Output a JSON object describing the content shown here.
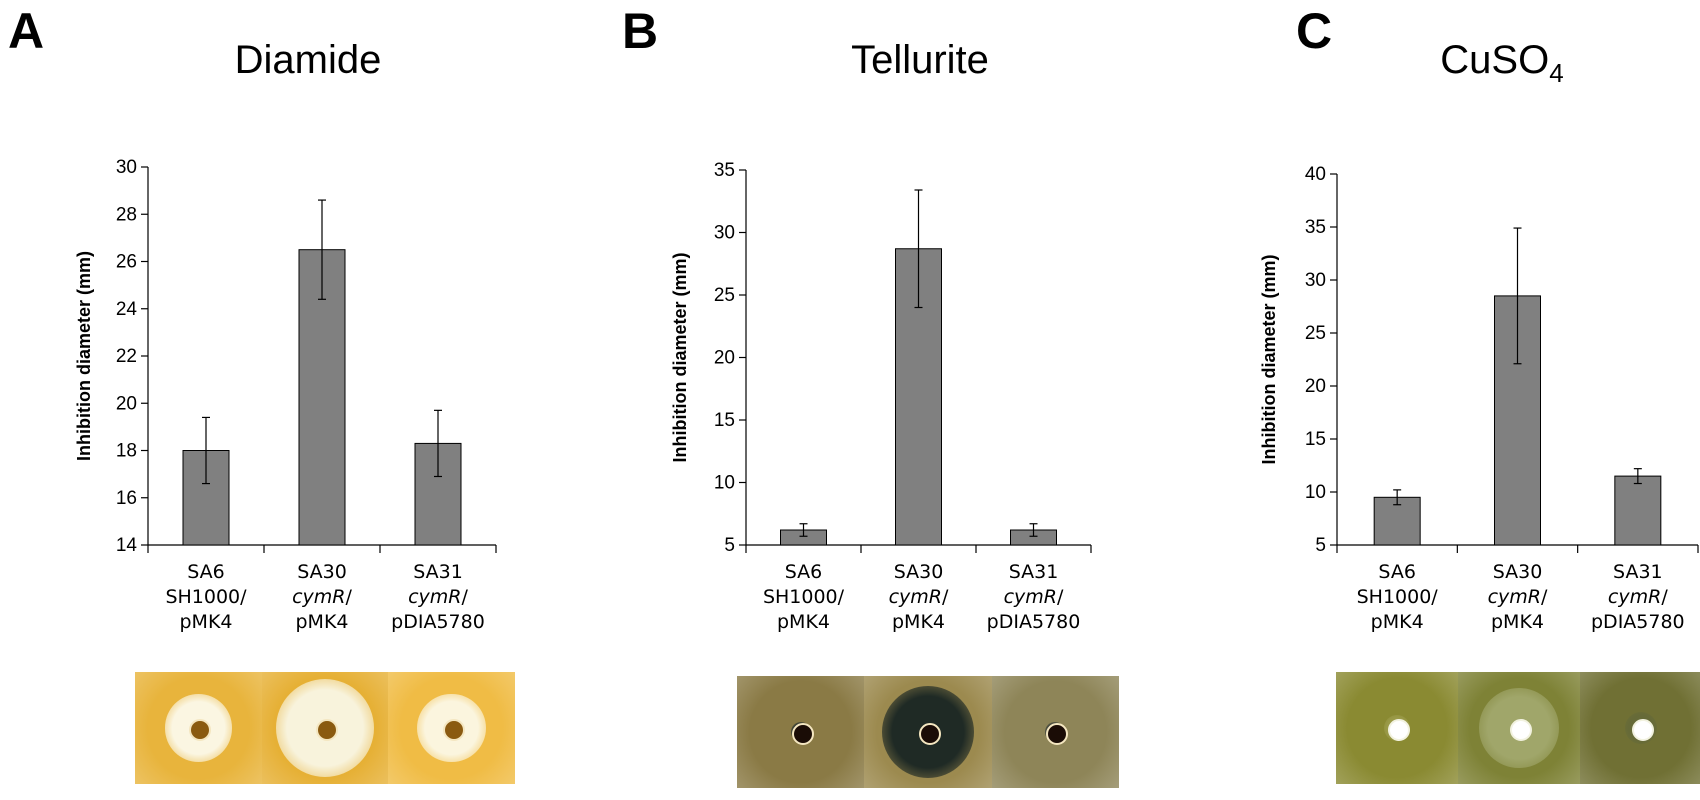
{
  "chart_data": [
    {
      "type": "bar",
      "panel_letter": "A",
      "title": "Diamide",
      "ylabel": "Inhibition diameter (mm)",
      "ylim": [
        14,
        30
      ],
      "yticks": [
        14,
        16,
        18,
        20,
        22,
        24,
        26,
        28,
        30
      ],
      "categories": [
        {
          "lines": [
            "SA6",
            "SH1000/",
            "pMK4"
          ]
        },
        {
          "lines": [
            "SA30",
            "cymR/",
            "pMK4"
          ],
          "italic_line": 1
        },
        {
          "lines": [
            "SA31",
            "cymR/",
            "pDIA5780"
          ],
          "italic_line": 1
        }
      ],
      "values": [
        18.0,
        26.5,
        18.3
      ],
      "errors": [
        1.4,
        2.1,
        1.4
      ],
      "bar_color": "#808080",
      "plate_colors": [
        "#e8b43c",
        "#e6b035",
        "#f0bc45"
      ],
      "zone_colors": [
        "#fbf6e2",
        "#f8f3dc",
        "#fbf5de"
      ]
    },
    {
      "type": "bar",
      "panel_letter": "B",
      "title": "Tellurite",
      "ylabel": "Inhibition diameter (mm)",
      "ylim": [
        5,
        35
      ],
      "yticks": [
        5,
        10,
        15,
        20,
        25,
        30,
        35
      ],
      "categories": [
        {
          "lines": [
            "SA6",
            "SH1000/",
            "pMK4"
          ]
        },
        {
          "lines": [
            "SA30",
            "cymR/",
            "pMK4"
          ],
          "italic_line": 1
        },
        {
          "lines": [
            "SA31",
            "cymR/",
            "pDIA5780"
          ],
          "italic_line": 1
        }
      ],
      "values": [
        6.2,
        28.7,
        6.2
      ],
      "errors": [
        0.5,
        4.7,
        0.5
      ],
      "bar_color": "#808080",
      "plate_colors": [
        "#8a7a45",
        "#9c8a4f",
        "#8e8558"
      ],
      "zone_colors": [
        "#2d3530",
        "#1f2a25",
        "#3a4038"
      ]
    },
    {
      "type": "bar",
      "panel_letter": "C",
      "title": "CuSO",
      "title_sub": "4",
      "ylabel": "Inhibition diameter (mm)",
      "ylim": [
        5,
        40
      ],
      "yticks": [
        5,
        10,
        15,
        20,
        25,
        30,
        35,
        40
      ],
      "categories": [
        {
          "lines": [
            "SA6",
            "SH1000/",
            "pMK4"
          ]
        },
        {
          "lines": [
            "SA30",
            "cymR/",
            "pMK4"
          ],
          "italic_line": 1
        },
        {
          "lines": [
            "SA31",
            "cymR/",
            "pDIA5780"
          ],
          "italic_line": 1
        }
      ],
      "values": [
        9.5,
        28.5,
        11.5
      ],
      "errors": [
        0.7,
        6.4,
        0.7
      ],
      "bar_color": "#808080",
      "plate_colors": [
        "#8a8a32",
        "#7e8236",
        "#707034"
      ],
      "zone_colors": [
        "#9a9a48",
        "#a0a66a",
        "#666a38"
      ]
    }
  ]
}
